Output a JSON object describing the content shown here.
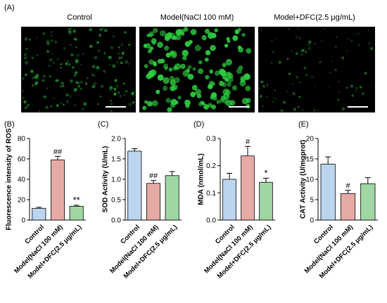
{
  "panel_a": {
    "label": "(A)",
    "titles": [
      "Control",
      "Model(NaCl 100 mM)",
      "Model+DFC(2.5 μg/mL)"
    ],
    "micrograph_color": "#2ecc40"
  },
  "colors": {
    "control": "#bcd5ee",
    "model": "#e6aaa6",
    "dfc": "#9fd7a4"
  },
  "chart_data": [
    {
      "type": "bar",
      "panel": "(B)",
      "ylabel": "Fluorescence intensity of ROS",
      "categories": [
        "Control",
        "Model(NaCl 100 mM)",
        "Model+DFC(2.5 μg/mL)"
      ],
      "values": [
        11.5,
        59,
        13.5
      ],
      "errors": [
        1.0,
        3.5,
        1.0
      ],
      "annotations": [
        "",
        "##",
        "**"
      ],
      "ylim": [
        0,
        80
      ],
      "yticks": [
        0,
        20,
        40,
        60,
        80
      ]
    },
    {
      "type": "bar",
      "panel": "(C)",
      "ylabel": "SOD Activity (U/mL)",
      "categories": [
        "Control",
        "Model(NaCl 100 mM)",
        "Model+DFC(2.5 μg/mL)"
      ],
      "values": [
        1.69,
        0.9,
        1.09
      ],
      "errors": [
        0.06,
        0.07,
        0.1
      ],
      "annotations": [
        "",
        "##",
        ""
      ],
      "ylim": [
        0,
        2.0
      ],
      "yticks": [
        0.0,
        0.5,
        1.0,
        1.5,
        2.0
      ]
    },
    {
      "type": "bar",
      "panel": "(D)",
      "ylabel": "MDA (nmol/mL)",
      "categories": [
        "Control",
        "Model(NaCl 100 mM)",
        "Model+DFC(2.5 μg/mL)"
      ],
      "values": [
        0.15,
        0.236,
        0.139
      ],
      "errors": [
        0.022,
        0.035,
        0.015
      ],
      "annotations": [
        "",
        "#",
        "*"
      ],
      "ylim": [
        0,
        0.3
      ],
      "yticks": [
        0.0,
        0.1,
        0.2,
        0.3
      ]
    },
    {
      "type": "bar",
      "panel": "(E)",
      "ylabel": "CAT Activity (U/mgprot)",
      "categories": [
        "Control",
        "Model(NaCl 100 mM)",
        "Model+DFC(2.5 μg/mL)"
      ],
      "values": [
        13.7,
        6.5,
        8.9
      ],
      "errors": [
        1.8,
        0.8,
        1.5
      ],
      "annotations": [
        "",
        "#",
        ""
      ],
      "ylim": [
        0,
        20
      ],
      "yticks": [
        0,
        5,
        10,
        15,
        20
      ]
    }
  ]
}
